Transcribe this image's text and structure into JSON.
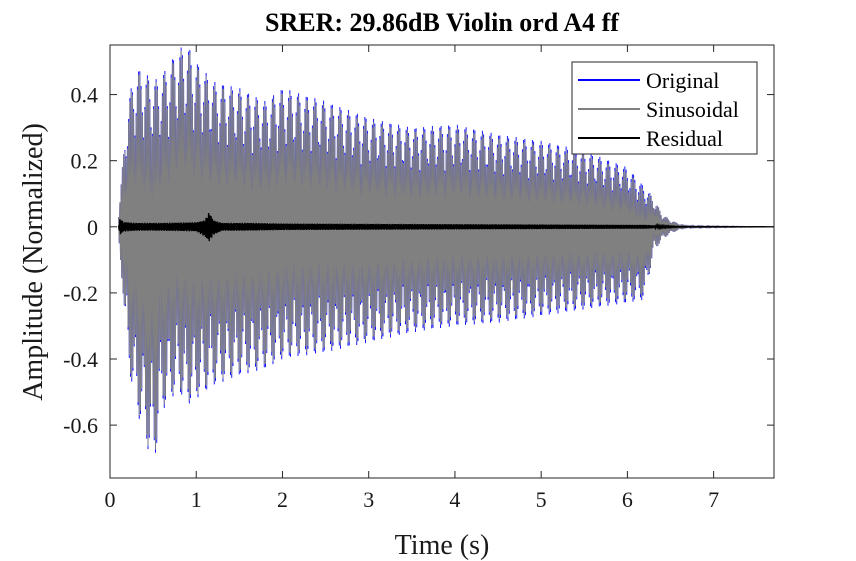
{
  "chart_data": {
    "type": "line",
    "title": "SRER: 29.86dB Violin ord A4 ff",
    "xlabel": "Time (s)",
    "ylabel": "Amplitude (Normalized)",
    "xlim": [
      0,
      7.7
    ],
    "ylim": [
      -0.76,
      0.55
    ],
    "xticks": [
      0,
      1,
      2,
      3,
      4,
      5,
      6,
      7
    ],
    "xtick_labels": [
      "0",
      "1",
      "2",
      "3",
      "4",
      "5",
      "6",
      "7"
    ],
    "yticks": [
      -0.6,
      -0.4,
      -0.2,
      0,
      0.2,
      0.4
    ],
    "ytick_labels": [
      "-0.6",
      "-0.4",
      "-0.2",
      "0",
      "0.2",
      "0.4"
    ],
    "grid": false,
    "legend_position": "top-right",
    "series": [
      {
        "name": "Original",
        "color": "#0000ff",
        "envelope": {
          "t": [
            0.1,
            0.15,
            0.2,
            0.3,
            0.4,
            0.5,
            0.6,
            0.7,
            0.8,
            0.9,
            1.0,
            1.2,
            1.5,
            1.8,
            2.0,
            2.5,
            3.0,
            3.5,
            4.0,
            4.5,
            5.0,
            5.5,
            6.0,
            6.2,
            6.3,
            6.4,
            6.5,
            6.6,
            6.7,
            7.7
          ],
          "upper": [
            0.05,
            0.2,
            0.37,
            0.48,
            0.47,
            0.44,
            0.46,
            0.5,
            0.54,
            0.55,
            0.5,
            0.44,
            0.42,
            0.38,
            0.42,
            0.38,
            0.33,
            0.3,
            0.31,
            0.28,
            0.26,
            0.23,
            0.18,
            0.12,
            0.09,
            0.04,
            0.02,
            0.01,
            0.003,
            0.0
          ],
          "lower": [
            -0.05,
            -0.2,
            -0.4,
            -0.55,
            -0.63,
            -0.74,
            -0.56,
            -0.52,
            -0.5,
            -0.54,
            -0.52,
            -0.48,
            -0.45,
            -0.43,
            -0.4,
            -0.38,
            -0.35,
            -0.32,
            -0.3,
            -0.29,
            -0.27,
            -0.25,
            -0.23,
            -0.22,
            -0.08,
            -0.04,
            -0.02,
            -0.01,
            -0.003,
            0.0
          ]
        }
      },
      {
        "name": "Sinusoidal",
        "color": "#808080",
        "envelope": {
          "t": [
            0.1,
            0.15,
            0.2,
            0.3,
            0.4,
            0.5,
            0.6,
            0.7,
            0.8,
            0.9,
            1.0,
            1.2,
            1.5,
            1.8,
            2.0,
            2.5,
            3.0,
            3.5,
            4.0,
            4.5,
            5.0,
            5.5,
            6.0,
            6.2,
            6.3,
            6.4,
            6.5,
            6.6,
            6.7,
            7.7
          ],
          "upper": [
            0.05,
            0.2,
            0.36,
            0.47,
            0.46,
            0.43,
            0.45,
            0.49,
            0.53,
            0.54,
            0.49,
            0.43,
            0.41,
            0.37,
            0.41,
            0.37,
            0.32,
            0.29,
            0.3,
            0.27,
            0.25,
            0.22,
            0.17,
            0.11,
            0.09,
            0.04,
            0.02,
            0.01,
            0.003,
            0.0
          ],
          "lower": [
            -0.05,
            -0.2,
            -0.39,
            -0.54,
            -0.62,
            -0.73,
            -0.55,
            -0.51,
            -0.49,
            -0.53,
            -0.51,
            -0.47,
            -0.44,
            -0.42,
            -0.39,
            -0.37,
            -0.34,
            -0.31,
            -0.29,
            -0.28,
            -0.26,
            -0.24,
            -0.22,
            -0.21,
            -0.08,
            -0.04,
            -0.02,
            -0.01,
            -0.003,
            0.0
          ]
        }
      },
      {
        "name": "Residual",
        "color": "#000000",
        "envelope": {
          "t": [
            0.1,
            0.12,
            0.15,
            0.3,
            0.6,
            1.0,
            1.1,
            1.15,
            1.2,
            1.3,
            1.6,
            2.0,
            3.0,
            4.0,
            5.0,
            6.0,
            6.2,
            6.4,
            6.6,
            7.7
          ],
          "upper": [
            0.005,
            0.03,
            0.015,
            0.012,
            0.012,
            0.014,
            0.02,
            0.045,
            0.02,
            0.012,
            0.012,
            0.01,
            0.009,
            0.008,
            0.007,
            0.006,
            0.006,
            0.003,
            0.001,
            0.0
          ],
          "lower": [
            -0.005,
            -0.025,
            -0.015,
            -0.012,
            -0.012,
            -0.014,
            -0.03,
            -0.045,
            -0.025,
            -0.012,
            -0.012,
            -0.01,
            -0.009,
            -0.008,
            -0.007,
            -0.006,
            -0.006,
            -0.003,
            -0.001,
            0.0
          ]
        }
      }
    ]
  }
}
